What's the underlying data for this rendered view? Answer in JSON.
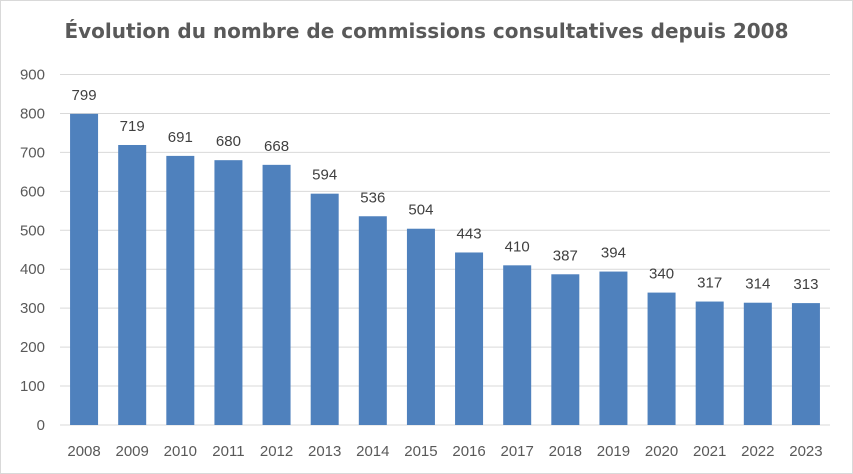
{
  "chart_data": {
    "type": "bar",
    "title": "Évolution du nombre de commissions consultatives depuis 2008",
    "xlabel": "",
    "ylabel": "",
    "categories": [
      "2008",
      "2009",
      "2010",
      "2011",
      "2012",
      "2013",
      "2014",
      "2015",
      "2016",
      "2017",
      "2018",
      "2019",
      "2020",
      "2021",
      "2022",
      "2023"
    ],
    "series": [
      {
        "values": [
          799,
          719,
          691,
          680,
          668,
          594,
          536,
          504,
          443,
          410,
          387,
          394,
          340,
          317,
          314,
          313
        ],
        "color": "#4f81bd"
      }
    ],
    "ylim": [
      0,
      900
    ],
    "yticks": [
      "0",
      "100",
      "200",
      "300",
      "400",
      "500",
      "600",
      "700",
      "800",
      "900"
    ],
    "data_labels": [
      "799",
      "719",
      "691",
      "680",
      "668",
      "594",
      "536",
      "504",
      "443",
      "410",
      "387",
      "394",
      "340",
      "317",
      "314",
      "313"
    ],
    "grid": true,
    "legend": "none"
  }
}
